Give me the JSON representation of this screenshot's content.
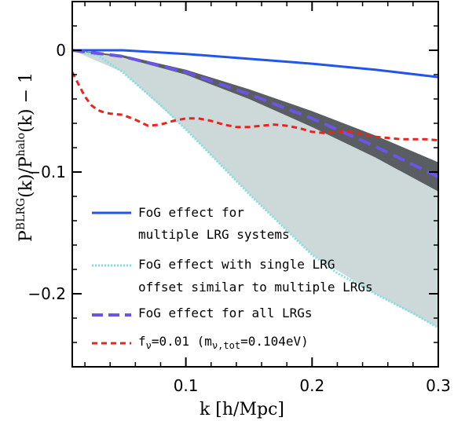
{
  "chart_data": {
    "type": "line",
    "xlabel": "k [h/Mpc]",
    "ylabel_text": "P(k)/P(k) − 1",
    "ylabel_sup1": "BLRG",
    "ylabel_sup2": "halo",
    "xlim": [
      0.01,
      0.3
    ],
    "ylim": [
      -0.26,
      0.04
    ],
    "xticks": [
      0.1,
      0.2,
      0.3
    ],
    "xtick_labels": [
      "0.1",
      "0.2",
      "0.3"
    ],
    "yticks": [
      0,
      -0.1,
      -0.2
    ],
    "ytick_labels": [
      "0",
      "−0.1",
      "−0.2"
    ],
    "legend_placement": "lower-left inside",
    "bands": [
      {
        "role": "single-LRG offset range (light)",
        "color": "#cdd8d8",
        "x": [
          0.01,
          0.05,
          0.1,
          0.15,
          0.2,
          0.25,
          0.3
        ],
        "upper": [
          0.0,
          -0.004,
          -0.016,
          -0.032,
          -0.05,
          -0.07,
          -0.092
        ],
        "lower": [
          0.0,
          -0.018,
          -0.065,
          -0.118,
          -0.168,
          -0.2,
          -0.228
        ]
      },
      {
        "role": "all-LRGs uncertainty (dark)",
        "color": "#5a5e62",
        "x": [
          0.01,
          0.05,
          0.1,
          0.15,
          0.2,
          0.25,
          0.3
        ],
        "upper": [
          0.0,
          -0.004,
          -0.016,
          -0.032,
          -0.05,
          -0.07,
          -0.092
        ],
        "lower": [
          0.0,
          -0.006,
          -0.02,
          -0.04,
          -0.063,
          -0.088,
          -0.116
        ]
      }
    ],
    "series": [
      {
        "name": "FoG effect for multiple LRG systems",
        "style": "solid",
        "color": "#2255e8",
        "x": [
          0.01,
          0.05,
          0.1,
          0.15,
          0.2,
          0.25,
          0.3
        ],
        "y": [
          0.0,
          0.0,
          -0.003,
          -0.007,
          -0.011,
          -0.016,
          -0.022
        ]
      },
      {
        "name": "FoG effect with single LRG offset similar to multiple LRGs",
        "style": "dotted",
        "color": "#7fe0e0",
        "x": [
          0.01,
          0.03,
          0.05,
          0.08,
          0.1,
          0.12,
          0.15,
          0.18,
          0.2,
          0.22,
          0.25,
          0.28,
          0.3
        ],
        "y": [
          0.0,
          -0.004,
          -0.018,
          -0.045,
          -0.065,
          -0.086,
          -0.118,
          -0.148,
          -0.168,
          -0.183,
          -0.2,
          -0.216,
          -0.228
        ]
      },
      {
        "name": "FoG effect for all LRGs",
        "style": "dashed",
        "color": "#6a55e6",
        "x": [
          0.01,
          0.05,
          0.1,
          0.15,
          0.2,
          0.25,
          0.3
        ],
        "y": [
          0.0,
          -0.005,
          -0.018,
          -0.036,
          -0.056,
          -0.079,
          -0.104
        ]
      },
      {
        "name": "f_ν=0.01 (m_ν,tot=0.104eV)",
        "style": "dashed",
        "color": "#e8241c",
        "x": [
          0.01,
          0.015,
          0.02,
          0.025,
          0.03,
          0.035,
          0.04,
          0.05,
          0.06,
          0.07,
          0.08,
          0.09,
          0.1,
          0.11,
          0.12,
          0.13,
          0.14,
          0.15,
          0.16,
          0.17,
          0.18,
          0.19,
          0.2,
          0.21,
          0.22,
          0.23,
          0.24,
          0.25,
          0.26,
          0.27,
          0.28,
          0.29,
          0.3
        ],
        "y": [
          -0.018,
          -0.028,
          -0.038,
          -0.045,
          -0.049,
          -0.051,
          -0.052,
          -0.053,
          -0.057,
          -0.062,
          -0.061,
          -0.058,
          -0.056,
          -0.056,
          -0.058,
          -0.061,
          -0.063,
          -0.063,
          -0.062,
          -0.061,
          -0.062,
          -0.064,
          -0.067,
          -0.068,
          -0.067,
          -0.067,
          -0.069,
          -0.071,
          -0.072,
          -0.073,
          -0.073,
          -0.073,
          -0.074
        ]
      }
    ],
    "legend": [
      {
        "line1": "FoG effect for",
        "line2": "multiple LRG systems",
        "style": "solid",
        "color": "#2255e8"
      },
      {
        "line1": "FoG effect with single LRG",
        "line2": "offset similar to multiple LRGs",
        "style": "dotted",
        "color": "#7fe0e0"
      },
      {
        "line1": "FoG effect for all LRGs",
        "line2": "",
        "style": "dashed-purple",
        "color": "#6a55e6"
      },
      {
        "line1": "f",
        "sub1": "ν",
        "mid": "=0.01 (m",
        "sub2": "ν,tot",
        "end": "=0.104eV)",
        "style": "dashed-red",
        "color": "#e8241c"
      }
    ]
  }
}
